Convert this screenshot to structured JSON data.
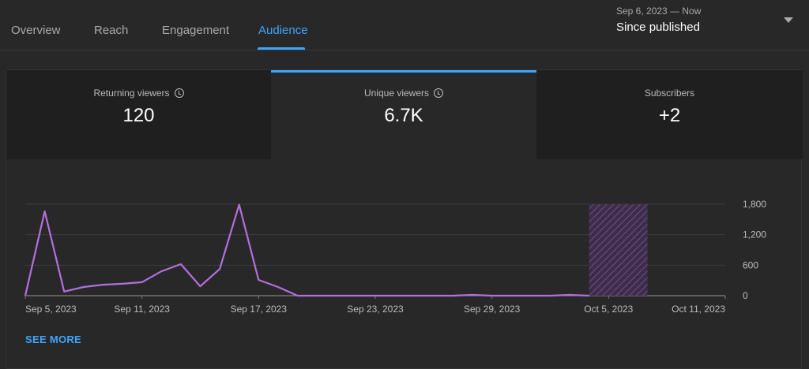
{
  "tabs": [
    {
      "label": "Overview"
    },
    {
      "label": "Reach"
    },
    {
      "label": "Engagement"
    },
    {
      "label": "Audience",
      "active": true
    }
  ],
  "date_range": {
    "range": "Sep 6, 2023 — Now",
    "label": "Since published"
  },
  "cards": [
    {
      "label": "Returning viewers",
      "value": "120",
      "icon": "clock-icon"
    },
    {
      "label": "Unique viewers",
      "value": "6.7K",
      "icon": "clock-icon",
      "active": true
    },
    {
      "label": "Subscribers",
      "value": "+2"
    }
  ],
  "see_more": "SEE MORE",
  "colors": {
    "accent": "#3ea6ff",
    "line": "#b36fe0",
    "background": "#282828"
  },
  "chart_data": {
    "type": "line",
    "xlabel": "",
    "ylabel": "",
    "ylim": [
      0,
      1800
    ],
    "yticks": [
      "1,800",
      "1,200",
      "600",
      "0"
    ],
    "ytick_values": [
      1800,
      1200,
      600,
      0
    ],
    "xticks": [
      "Sep 5, 2023",
      "Sep 11, 2023",
      "Sep 17, 2023",
      "Sep 23, 2023",
      "Sep 29, 2023",
      "Oct 5, 2023",
      "Oct 11, 2023"
    ],
    "xtick_dates": [
      "2023-09-05",
      "2023-09-11",
      "2023-09-17",
      "2023-09-23",
      "2023-09-29",
      "2023-10-05",
      "2023-10-11"
    ],
    "xlim": [
      "2023-09-05",
      "2023-10-11"
    ],
    "grid": true,
    "pending_range": [
      "2023-10-04",
      "2023-10-07"
    ],
    "x": [
      "2023-09-05",
      "2023-09-06",
      "2023-09-07",
      "2023-09-08",
      "2023-09-09",
      "2023-09-10",
      "2023-09-11",
      "2023-09-12",
      "2023-09-13",
      "2023-09-14",
      "2023-09-15",
      "2023-09-16",
      "2023-09-17",
      "2023-09-18",
      "2023-09-19",
      "2023-09-20",
      "2023-09-21",
      "2023-09-22",
      "2023-09-23",
      "2023-09-24",
      "2023-09-25",
      "2023-09-26",
      "2023-09-27",
      "2023-09-28",
      "2023-09-29",
      "2023-09-30",
      "2023-10-01",
      "2023-10-02",
      "2023-10-03",
      "2023-10-04"
    ],
    "values": [
      0,
      1660,
      80,
      170,
      215,
      235,
      265,
      480,
      620,
      185,
      525,
      1790,
      310,
      170,
      0,
      0,
      0,
      0,
      0,
      0,
      0,
      0,
      0,
      15,
      0,
      0,
      0,
      0,
      15,
      0
    ]
  }
}
